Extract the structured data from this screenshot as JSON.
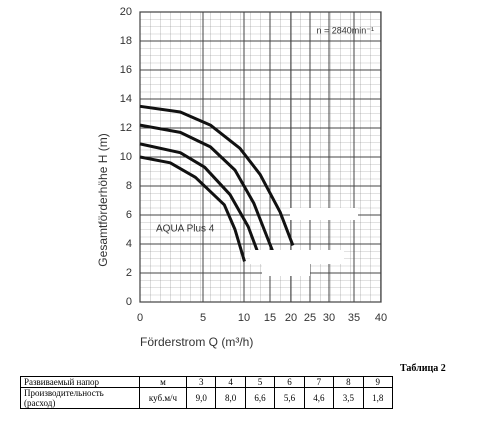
{
  "chart_data": {
    "type": "line",
    "annotation": "n = 2840min⁻¹",
    "label": "AQUA Plus 4",
    "xlabel": "Förderstrom   Q (m³/h)",
    "ylabel": "Gesamtförderhöhe  H (m)",
    "xlim": [
      0,
      40
    ],
    "xticks": [
      0,
      5,
      10,
      15,
      20,
      25,
      30,
      35,
      40
    ],
    "ylim": [
      0,
      20
    ],
    "yticks": [
      0,
      2,
      4,
      6,
      8,
      10,
      12,
      14,
      16,
      18,
      20
    ],
    "grid": true,
    "series": [
      {
        "color": "#111111",
        "x": [
          0,
          3.2,
          5.9,
          9.5,
          13.1,
          17.4,
          20.5
        ],
        "values": [
          13.5,
          13.1,
          12.2,
          10.6,
          8.8,
          6.2,
          3.9
        ]
      },
      {
        "color": "#111111",
        "x": [
          0,
          3.2,
          5.9,
          8.9,
          11.9,
          16.2
        ],
        "values": [
          12.2,
          11.7,
          10.7,
          9.1,
          6.8,
          3.1
        ]
      },
      {
        "color": "#111111",
        "x": [
          0,
          3.2,
          5.2,
          8.3,
          10.8,
          13.1
        ],
        "values": [
          10.9,
          10.3,
          9.3,
          7.4,
          5.2,
          3.0
        ]
      },
      {
        "color": "#111111",
        "x": [
          0,
          2.4,
          4.4,
          7.6,
          8.9,
          10.1
        ],
        "values": [
          10.0,
          9.6,
          8.6,
          6.7,
          5.0,
          2.8
        ]
      }
    ]
  },
  "table": {
    "caption": "Таблица 2",
    "rows": [
      [
        "Развиваемый напор",
        "м",
        "3",
        "4",
        "5",
        "6",
        "7",
        "8",
        "9"
      ],
      [
        "Производительность (расход)",
        "куб.м/ч",
        "9,0",
        "8,0",
        "6,6",
        "5,6",
        "4,6",
        "3,5",
        "1,8"
      ]
    ]
  }
}
